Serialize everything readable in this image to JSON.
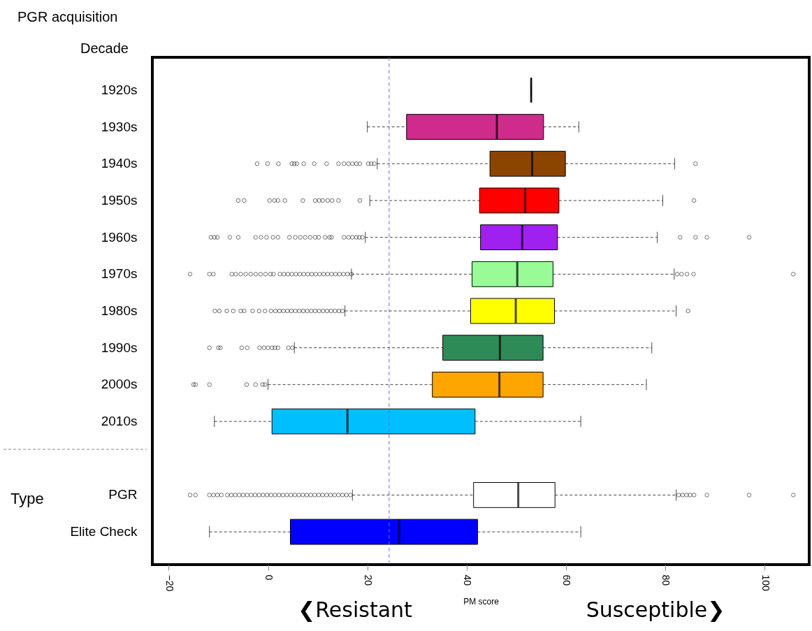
{
  "chart_data": {
    "type": "box",
    "orientation": "horizontal",
    "xlabel": "PM score",
    "categories": [
      "1920s",
      "1930s",
      "1940s",
      "1950s",
      "1960s",
      "1970s",
      "1980s",
      "1990s",
      "2000s",
      "2010s",
      null,
      "PGR",
      "Elite Check"
    ],
    "colors": [
      "#000000",
      "#cf2a8c",
      "#8b4500",
      "#ff0000",
      "#a020f0",
      "#98fb98",
      "#ffff00",
      "#2e8b57",
      "#ffa500",
      "#00bfff",
      null,
      "#ffffff",
      "#0000ff"
    ],
    "boxes": [
      {
        "low": 53.0,
        "q1": 53.0,
        "median": 53.0,
        "q3": 53.0,
        "high": 53.0
      },
      {
        "low": 20.0,
        "q1": 27.9,
        "median": 46.1,
        "q3": 55.5,
        "high": 62.6
      },
      {
        "low": 22.0,
        "q1": 44.7,
        "median": 53.2,
        "q3": 59.9,
        "high": 81.9,
        "outliers": [
          -2.2,
          -0.1,
          2.1,
          4.8,
          5.3,
          5.8,
          7.2,
          9.3,
          11.8,
          14.2,
          15.3,
          16.2,
          17.0,
          17.8,
          18.5,
          20.2,
          20.8,
          21.4,
          86.1
        ]
      },
      {
        "low": 20.5,
        "q1": 42.6,
        "median": 51.8,
        "q3": 58.6,
        "high": 79.5,
        "outliers": [
          -6.0,
          -4.8,
          0.3,
          1.3,
          2.0,
          3.4,
          7.0,
          9.5,
          10.3,
          11.0,
          12.0,
          12.9,
          14.2,
          18.5,
          85.8
        ]
      },
      {
        "low": 19.6,
        "q1": 42.8,
        "median": 51.2,
        "q3": 58.3,
        "high": 78.4,
        "outliers": [
          -11.5,
          -10.8,
          -10.2,
          -7.7,
          -6.0,
          -2.5,
          -1.4,
          -0.3,
          1.0,
          2.0,
          4.3,
          5.5,
          6.5,
          7.5,
          8.5,
          9.5,
          10.2,
          11.5,
          12.4,
          12.8,
          15.3,
          16.2,
          17.0,
          17.8,
          18.4,
          19.0,
          83.0,
          86.1,
          88.4,
          96.9
        ]
      },
      {
        "low": 16.8,
        "q1": 41.1,
        "median": 50.2,
        "q3": 57.4,
        "high": 81.8,
        "outliers": [
          -15.7,
          -11.8,
          -11.0,
          -7.3,
          -6.5,
          -5.5,
          -4.5,
          -3.5,
          -2.5,
          -1.5,
          -0.5,
          0.5,
          1.1,
          2.4,
          3.2,
          4.0,
          4.8,
          5.6,
          6.4,
          7.2,
          8.0,
          8.8,
          9.6,
          10.4,
          11.2,
          12.0,
          12.8,
          13.6,
          14.4,
          15.2,
          16.0,
          16.8,
          82.4,
          83.3,
          84.4,
          85.7,
          105.8
        ]
      },
      {
        "low": 15.5,
        "q1": 40.8,
        "median": 49.9,
        "q3": 57.7,
        "high": 82.2,
        "outliers": [
          -10.7,
          -9.8,
          -8.3,
          -7.0,
          -5.5,
          -4.8,
          -3.1,
          -1.8,
          -0.6,
          0.6,
          1.5,
          2.3,
          3.1,
          3.9,
          4.7,
          5.5,
          6.3,
          7.1,
          7.9,
          8.7,
          9.5,
          10.3,
          11.1,
          11.9,
          12.7,
          13.5,
          14.3,
          15.0,
          84.6
        ]
      },
      {
        "low": 5.3,
        "q1": 35.2,
        "median": 46.7,
        "q3": 55.4,
        "high": 77.3,
        "outliers": [
          -11.8,
          -10.0,
          -9.6,
          -5.3,
          -4.2,
          -1.7,
          -0.8,
          0.0,
          0.8,
          1.4,
          2.0,
          4.1,
          4.9
        ]
      },
      {
        "low": 0.0,
        "q1": 33.1,
        "median": 46.6,
        "q3": 55.4,
        "high": 76.2,
        "outliers": [
          -15.0,
          -14.6,
          -11.8,
          -4.3,
          -2.5,
          -1.1,
          -0.6
        ]
      },
      {
        "low": -10.8,
        "q1": 0.8,
        "median": 16.0,
        "q3": 41.7,
        "high": 63.0
      },
      null,
      {
        "low": 17.0,
        "q1": 41.4,
        "median": 50.4,
        "q3": 57.8,
        "high": 82.2,
        "outliers": [
          -15.7,
          -14.6,
          -11.8,
          -11.0,
          -10.2,
          -9.4,
          -8.2,
          -7.4,
          -6.6,
          -5.8,
          -5.0,
          -4.2,
          -3.4,
          -2.6,
          -1.8,
          -1.0,
          -0.2,
          0.6,
          1.4,
          2.2,
          3.0,
          3.8,
          4.6,
          5.4,
          6.2,
          7.0,
          7.8,
          8.6,
          9.4,
          10.2,
          11.0,
          11.8,
          12.6,
          13.4,
          14.2,
          15.0,
          15.8,
          16.6,
          82.7,
          83.5,
          84.3,
          85.0,
          85.8,
          88.4,
          96.9,
          105.8
        ]
      },
      {
        "low": -11.8,
        "q1": 4.5,
        "median": 26.4,
        "q3": 42.2,
        "high": 63.0
      }
    ],
    "xlim": [
      -23.3,
      109
    ],
    "xticks": [
      -20,
      0,
      20,
      40,
      60,
      80,
      100
    ],
    "ref_lines": [
      {
        "axis": "x",
        "value": 24.4,
        "color": "#6b6bff",
        "line_style": "dashed"
      }
    ],
    "annotations": [
      "PGR acquisition",
      "Decade",
      "Type",
      "❮Resistant",
      "Susceptible❯"
    ],
    "grid": false,
    "legend": false
  }
}
